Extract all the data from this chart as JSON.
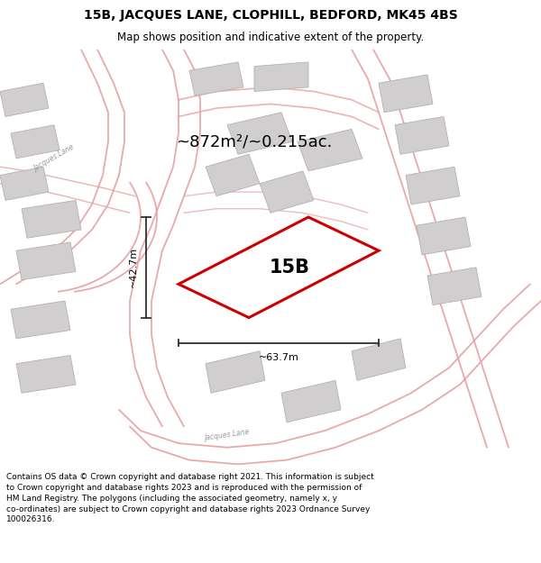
{
  "title_line1": "15B, JACQUES LANE, CLOPHILL, BEDFORD, MK45 4BS",
  "title_line2": "Map shows position and indicative extent of the property.",
  "area_text": "~872m²/~0.215ac.",
  "label_15B": "15B",
  "dim_height": "~42.7m",
  "dim_width": "~63.7m",
  "footer_text": "Contains OS data © Crown copyright and database right 2021. This information is subject to Crown copyright and database rights 2023 and is reproduced with the permission of HM Land Registry. The polygons (including the associated geometry, namely x, y co-ordinates) are subject to Crown copyright and database rights 2023 Ordnance Survey 100026316.",
  "road_color": "#e8a0a0",
  "road_color2": "#c87878",
  "building_color": "#d0cece",
  "building_edge": "#b8b0b0",
  "highlight_color": "#cc0000",
  "dim_color": "#303030",
  "road_label_color": "#999999",
  "title_color": "#000000",
  "footer_color": "#000000",
  "map_bg": "#ffffff",
  "title_bg": "#ffffff",
  "footer_bg": "#ffffff"
}
